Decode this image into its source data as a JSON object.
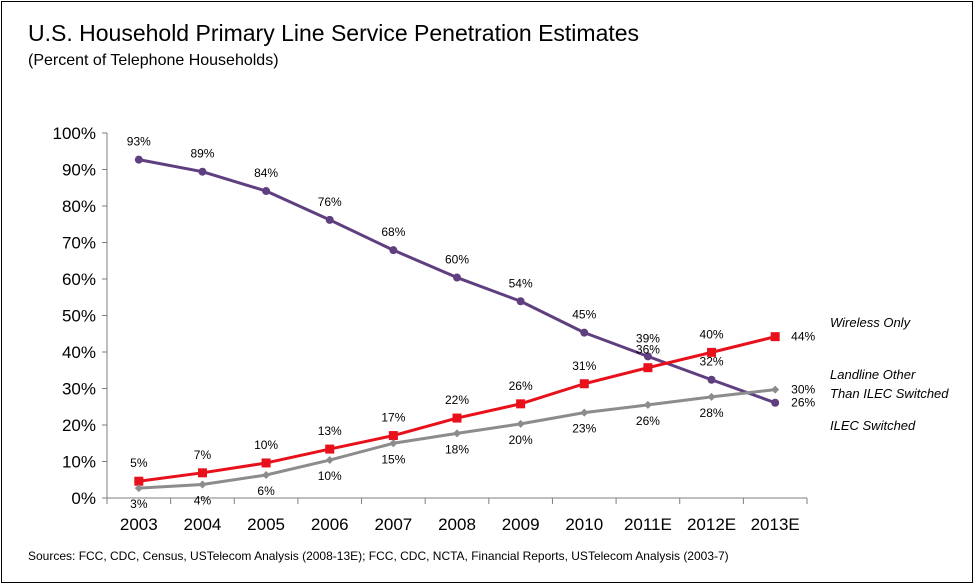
{
  "chart_data": {
    "type": "line",
    "title": "U.S. Household Primary Line Service Penetration Estimates",
    "subtitle": "(Percent of Telephone Households)",
    "source": "Sources: FCC, CDC, Census, USTelecom Analysis (2008-13E); FCC, CDC, NCTA, Financial Reports, USTelecom Analysis (2003-7)",
    "categories": [
      "2003",
      "2004",
      "2005",
      "2006",
      "2007",
      "2008",
      "2009",
      "2010",
      "2011E",
      "2012E",
      "2013E"
    ],
    "ylim": [
      0,
      100
    ],
    "yticks": [
      "0%",
      "10%",
      "20%",
      "30%",
      "40%",
      "50%",
      "60%",
      "70%",
      "80%",
      "90%",
      "100%"
    ],
    "grid": false,
    "legend_placement": "right, at series ends",
    "series": [
      {
        "key": "ilec",
        "name": "ILEC Switched",
        "legend_lines": [
          "ILEC Switched"
        ],
        "color": "#5f3f7f",
        "marker": "circle",
        "values": [
          92.7,
          89.4,
          84.1,
          76.2,
          67.9,
          60.4,
          53.9,
          45.3,
          38.8,
          32.4,
          26.1
        ],
        "labels": [
          "93%",
          "89%",
          "84%",
          "76%",
          "68%",
          "60%",
          "54%",
          "45%",
          "39%",
          "32%",
          "26%"
        ]
      },
      {
        "key": "wireless",
        "name": "Wireless Only",
        "legend_lines": [
          "Wireless Only"
        ],
        "color": "#e8101a",
        "marker": "square",
        "values": [
          4.6,
          6.9,
          9.6,
          13.4,
          17.1,
          21.9,
          25.8,
          31.3,
          35.7,
          39.9,
          44.2
        ],
        "labels": [
          "5%",
          "7%",
          "10%",
          "13%",
          "17%",
          "22%",
          "26%",
          "31%",
          "36%",
          "40%",
          "44%"
        ]
      },
      {
        "key": "landline_other",
        "name": "Landline Other Than ILEC Switched",
        "legend_lines": [
          "Landline Other",
          "Than ILEC Switched"
        ],
        "color": "#8c8c8c",
        "marker": "diamond",
        "values": [
          2.7,
          3.7,
          6.3,
          10.4,
          15.0,
          17.7,
          20.3,
          23.4,
          25.5,
          27.7,
          29.7
        ],
        "labels": [
          "3%",
          "4%",
          "6%",
          "10%",
          "15%",
          "18%",
          "20%",
          "23%",
          "26%",
          "28%",
          "30%"
        ]
      }
    ]
  }
}
